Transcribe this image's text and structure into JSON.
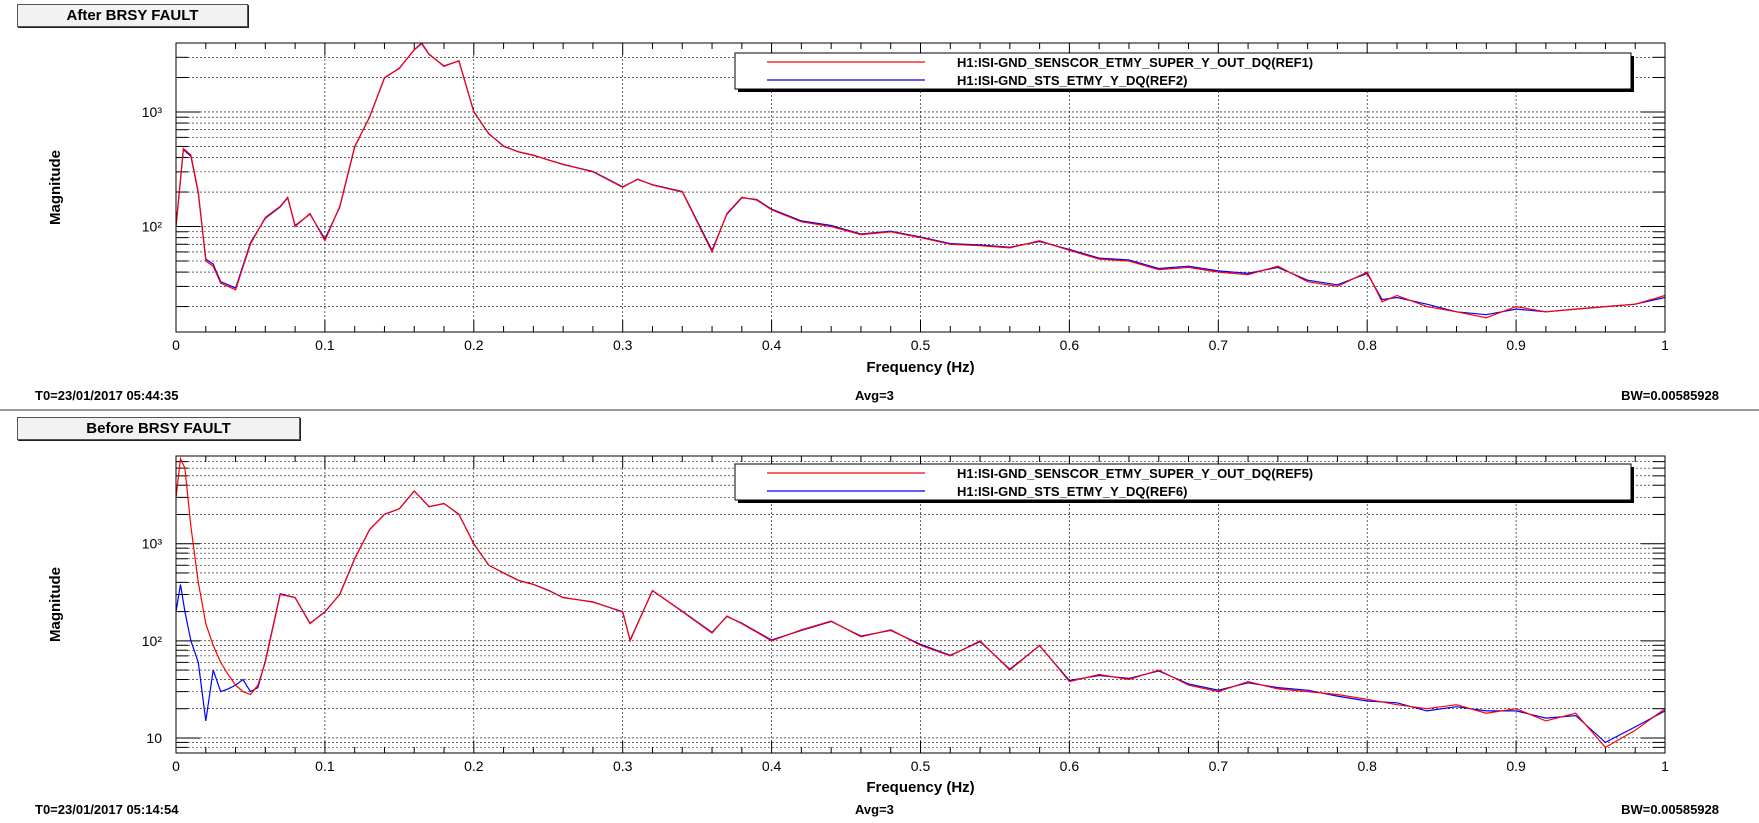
{
  "chart_data": [
    {
      "type": "line",
      "panel_label": "After BRSY FAULT",
      "xlabel": "Frequency (Hz)",
      "ylabel": "Magnitude",
      "xlim": [
        0,
        1
      ],
      "ylim": [
        12,
        4000
      ],
      "yscale": "log",
      "xticks": [
        0,
        0.1,
        0.2,
        0.3,
        0.4,
        0.5,
        0.6,
        0.7,
        0.8,
        0.9,
        1
      ],
      "xtick_labels": [
        "0",
        "0.1",
        "0.2",
        "0.3",
        "0.4",
        "0.5",
        "0.6",
        "0.7",
        "0.8",
        "0.9",
        "1"
      ],
      "yticks": [
        100,
        1000
      ],
      "ytick_labels": [
        "10²",
        "10³"
      ],
      "grid": true,
      "legend_position": "top-right",
      "footer": {
        "t0": "T0=23/01/2017 05:44:35",
        "avg": "Avg=3",
        "bw": "BW=0.00585928"
      },
      "x": [
        0,
        0.005,
        0.01,
        0.015,
        0.02,
        0.025,
        0.03,
        0.04,
        0.05,
        0.06,
        0.07,
        0.075,
        0.08,
        0.09,
        0.1,
        0.11,
        0.12,
        0.13,
        0.14,
        0.15,
        0.16,
        0.165,
        0.17,
        0.18,
        0.19,
        0.2,
        0.21,
        0.22,
        0.23,
        0.24,
        0.25,
        0.26,
        0.28,
        0.3,
        0.31,
        0.32,
        0.34,
        0.36,
        0.37,
        0.38,
        0.39,
        0.4,
        0.42,
        0.44,
        0.46,
        0.48,
        0.5,
        0.52,
        0.54,
        0.56,
        0.58,
        0.6,
        0.62,
        0.64,
        0.66,
        0.68,
        0.7,
        0.72,
        0.74,
        0.76,
        0.78,
        0.8,
        0.81,
        0.82,
        0.84,
        0.86,
        0.88,
        0.9,
        0.92,
        0.94,
        0.96,
        0.98,
        1
      ],
      "series": [
        {
          "name": "H1:ISI-GND_SENSCOR_ETMY_SUPER_Y_OUT_DQ(REF1)",
          "color": "#ff0000",
          "values": [
            100,
            480,
            420,
            200,
            50,
            45,
            32,
            28,
            70,
            120,
            150,
            180,
            100,
            130,
            75,
            150,
            500,
            900,
            2000,
            2400,
            3500,
            4000,
            3200,
            2500,
            2800,
            1000,
            650,
            500,
            450,
            420,
            380,
            350,
            300,
            220,
            260,
            230,
            200,
            60,
            130,
            180,
            170,
            140,
            110,
            100,
            85,
            90,
            80,
            70,
            68,
            65,
            75,
            62,
            52,
            50,
            42,
            44,
            40,
            38,
            45,
            33,
            30,
            40,
            22,
            25,
            20,
            18,
            16,
            20,
            18,
            19,
            20,
            21,
            25
          ]
        },
        {
          "name": "H1:ISI-GND_STS_ETMY_Y_DQ(REF2)",
          "color": "#0000ff",
          "values": [
            100,
            470,
            410,
            195,
            52,
            47,
            33,
            29,
            72,
            118,
            148,
            178,
            102,
            128,
            78,
            148,
            495,
            905,
            1980,
            2420,
            3480,
            3950,
            3180,
            2520,
            2790,
            1010,
            645,
            505,
            448,
            418,
            382,
            348,
            302,
            222,
            258,
            232,
            202,
            62,
            128,
            178,
            172,
            142,
            112,
            102,
            86,
            91,
            81,
            71,
            69,
            66,
            74,
            63,
            53,
            51,
            43,
            45,
            41,
            39,
            44,
            34,
            31,
            39,
            23,
            24,
            21,
            18,
            17,
            19,
            18,
            19,
            20,
            21,
            24
          ]
        }
      ]
    },
    {
      "type": "line",
      "panel_label": "Before BRSY FAULT",
      "xlabel": "Frequency (Hz)",
      "ylabel": "Magnitude",
      "xlim": [
        0,
        1
      ],
      "ylim": [
        7,
        8000
      ],
      "yscale": "log",
      "xticks": [
        0,
        0.1,
        0.2,
        0.3,
        0.4,
        0.5,
        0.6,
        0.7,
        0.8,
        0.9,
        1
      ],
      "xtick_labels": [
        "0",
        "0.1",
        "0.2",
        "0.3",
        "0.4",
        "0.5",
        "0.6",
        "0.7",
        "0.8",
        "0.9",
        "1"
      ],
      "yticks": [
        10,
        100,
        1000
      ],
      "ytick_labels": [
        "10",
        "10²",
        "10³"
      ],
      "grid": true,
      "legend_position": "top-right",
      "footer": {
        "t0": "T0=23/01/2017 05:14:54",
        "avg": "Avg=3",
        "bw": "BW=0.00585928"
      },
      "x": [
        0,
        0.003,
        0.006,
        0.01,
        0.015,
        0.02,
        0.025,
        0.03,
        0.035,
        0.04,
        0.045,
        0.05,
        0.055,
        0.06,
        0.07,
        0.08,
        0.09,
        0.1,
        0.11,
        0.12,
        0.13,
        0.14,
        0.15,
        0.16,
        0.17,
        0.18,
        0.19,
        0.2,
        0.21,
        0.22,
        0.23,
        0.24,
        0.25,
        0.26,
        0.28,
        0.3,
        0.305,
        0.32,
        0.34,
        0.36,
        0.37,
        0.38,
        0.4,
        0.42,
        0.44,
        0.46,
        0.48,
        0.5,
        0.52,
        0.54,
        0.56,
        0.58,
        0.6,
        0.62,
        0.64,
        0.66,
        0.68,
        0.7,
        0.72,
        0.74,
        0.76,
        0.78,
        0.8,
        0.82,
        0.84,
        0.86,
        0.88,
        0.9,
        0.92,
        0.94,
        0.96,
        0.98,
        1
      ],
      "series": [
        {
          "name": "H1:ISI-GND_SENSCOR_ETMY_SUPER_Y_OUT_DQ(REF5)",
          "color": "#ff0000",
          "values": [
            3000,
            7500,
            6000,
            1500,
            400,
            150,
            90,
            60,
            45,
            35,
            30,
            28,
            35,
            60,
            300,
            280,
            150,
            200,
            300,
            700,
            1400,
            2000,
            2300,
            3500,
            2400,
            2600,
            2000,
            1000,
            600,
            500,
            420,
            380,
            330,
            280,
            250,
            200,
            100,
            330,
            200,
            120,
            180,
            150,
            100,
            130,
            160,
            110,
            130,
            90,
            70,
            100,
            50,
            90,
            38,
            45,
            40,
            50,
            35,
            30,
            38,
            32,
            30,
            28,
            25,
            22,
            20,
            22,
            18,
            20,
            15,
            18,
            8,
            12,
            20
          ]
        },
        {
          "name": "H1:ISI-GND_STS_ETMY_Y_DQ(REF6)",
          "color": "#0000ff",
          "values": [
            200,
            380,
            200,
            100,
            60,
            15,
            50,
            30,
            32,
            35,
            40,
            30,
            33,
            62,
            305,
            278,
            152,
            198,
            302,
            705,
            1395,
            2010,
            2290,
            3480,
            2410,
            2590,
            2020,
            995,
            602,
            498,
            418,
            382,
            332,
            278,
            252,
            198,
            102,
            328,
            202,
            122,
            178,
            152,
            102,
            128,
            158,
            112,
            128,
            92,
            71,
            98,
            51,
            89,
            39,
            44,
            41,
            49,
            36,
            31,
            37,
            33,
            31,
            27,
            24,
            23,
            19,
            21,
            19,
            19,
            16,
            17,
            9,
            13,
            19
          ]
        }
      ]
    }
  ]
}
